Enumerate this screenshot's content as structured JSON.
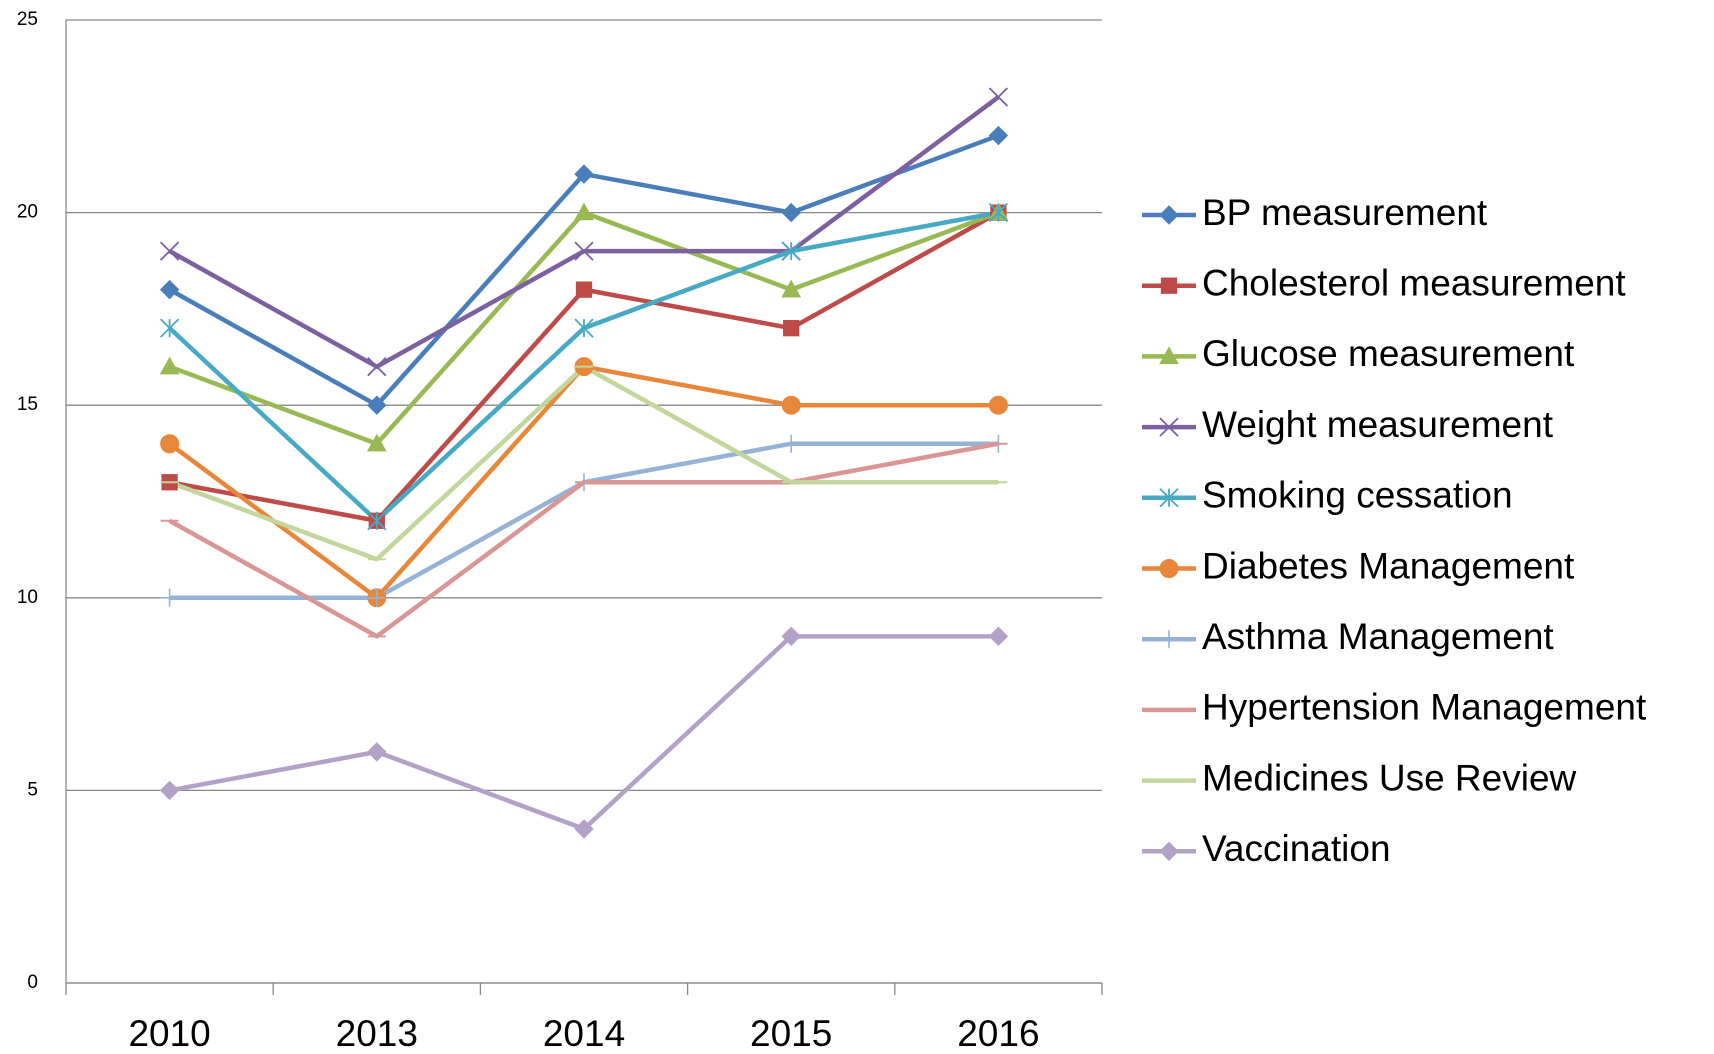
{
  "chart_data": {
    "type": "line",
    "categories": [
      "2010",
      "2013",
      "2014",
      "2015",
      "2016"
    ],
    "ylim": [
      0,
      25
    ],
    "yticks": [
      0,
      5,
      10,
      15,
      20,
      25
    ],
    "grid": true,
    "legend": "right",
    "series": [
      {
        "name": "BP measurement",
        "color": "#4a7ebb",
        "marker": "diamond",
        "values": [
          18,
          15,
          21,
          20,
          22
        ]
      },
      {
        "name": "Cholesterol measurement",
        "color": "#be4b48",
        "marker": "square",
        "values": [
          13,
          12,
          18,
          17,
          20
        ]
      },
      {
        "name": "Glucose measurement",
        "color": "#98b954",
        "marker": "triangle",
        "values": [
          16,
          14,
          20,
          18,
          20
        ]
      },
      {
        "name": "Weight measurement",
        "color": "#7d60a0",
        "marker": "x",
        "values": [
          19,
          16,
          19,
          19,
          23
        ]
      },
      {
        "name": "Smoking cessation",
        "color": "#46aac5",
        "marker": "star",
        "values": [
          17,
          12,
          17,
          19,
          20
        ]
      },
      {
        "name": "Diabetes Management",
        "color": "#e8873a",
        "marker": "circle",
        "values": [
          14,
          10,
          16,
          15,
          15
        ]
      },
      {
        "name": "Asthma Management",
        "color": "#95b3d7",
        "marker": "plus",
        "values": [
          10,
          10,
          13,
          14,
          14
        ]
      },
      {
        "name": "Hypertension Management",
        "color": "#d99694",
        "marker": "dash",
        "values": [
          12,
          9,
          13,
          13,
          14
        ]
      },
      {
        "name": "Medicines Use Review",
        "color": "#c3d69b",
        "marker": "dash",
        "values": [
          13,
          11,
          16,
          13,
          13
        ]
      },
      {
        "name": "Vaccination",
        "color": "#b3a2c7",
        "marker": "diamond",
        "values": [
          5,
          6,
          4,
          9,
          9
        ]
      }
    ]
  }
}
